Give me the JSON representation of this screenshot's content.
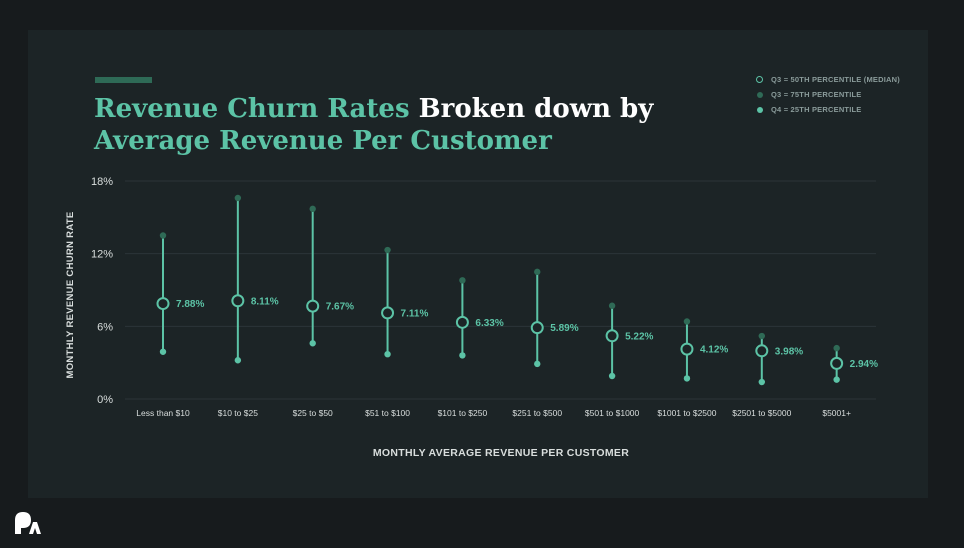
{
  "title": {
    "highlight": "Revenue Churn Rates",
    "rest_line1": " Broken down by",
    "line2": "Average Revenue Per Customer"
  },
  "legend": [
    {
      "label": "Q3 = 50TH PERCENTILE (MEDIAN)",
      "swatch": "ring"
    },
    {
      "label": "Q3 = 75TH PERCENTILE",
      "swatch": "dark"
    },
    {
      "label": "Q4 = 25TH PERCENTILE",
      "swatch": "light"
    }
  ],
  "colors": {
    "accent": "#5cc3a6",
    "dark_point": "#2f6a56",
    "background": "#1c2426",
    "grid": "#2b3538",
    "axis_text": "#d9dedd"
  },
  "chart_data": {
    "type": "scatter",
    "title": "Revenue Churn Rates Broken down by Average Revenue Per Customer",
    "xlabel": "MONTHLY AVERAGE REVENUE PER CUSTOMER",
    "ylabel": "MONTHLY REVENUE CHURN RATE",
    "ylim": [
      0,
      18
    ],
    "yticks": [
      0,
      6,
      12,
      18
    ],
    "ytick_labels": [
      "0%",
      "6%",
      "12%",
      "18%"
    ],
    "grid": true,
    "legend_position": "top-right",
    "categories": [
      "Less than $10",
      "$10 to $25",
      "$25 to $50",
      "$51 to $100",
      "$101 to $250",
      "$251 to $500",
      "$501 to $1000",
      "$1001 to $2500",
      "$2501 to $5000",
      "$5001+"
    ],
    "series": [
      {
        "name": "Q3 = 75TH PERCENTILE",
        "values": [
          13.5,
          16.6,
          15.7,
          12.3,
          9.8,
          10.5,
          7.7,
          6.4,
          5.2,
          4.2
        ]
      },
      {
        "name": "Q3 = 50TH PERCENTILE (MEDIAN)",
        "values": [
          7.88,
          8.11,
          7.67,
          7.11,
          6.33,
          5.89,
          5.22,
          4.12,
          3.98,
          2.94
        ]
      },
      {
        "name": "Q4 = 25TH PERCENTILE",
        "values": [
          3.9,
          3.2,
          4.6,
          3.7,
          3.6,
          2.9,
          1.9,
          1.7,
          1.4,
          1.6
        ]
      }
    ],
    "data_labels": [
      "7.88%",
      "8.11%",
      "7.67%",
      "7.11%",
      "6.33%",
      "5.89%",
      "5.22%",
      "4.12%",
      "3.98%",
      "2.94%"
    ]
  }
}
